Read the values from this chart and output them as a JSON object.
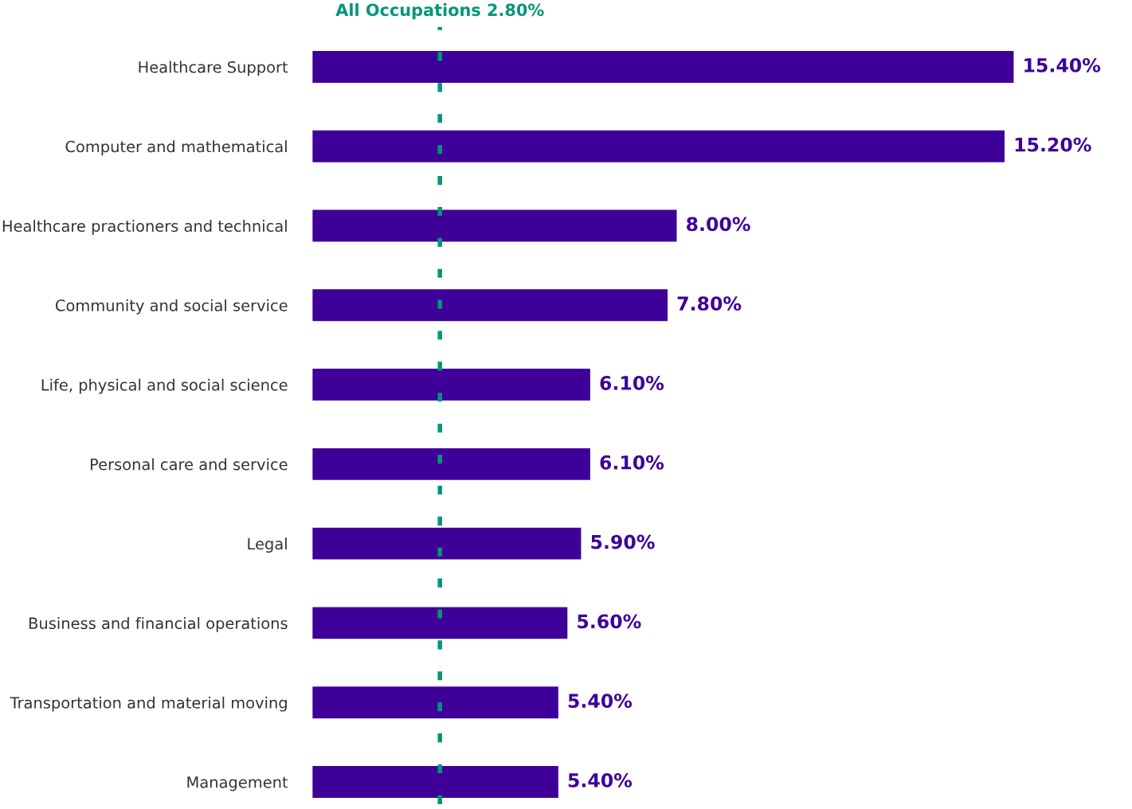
{
  "chart_data": {
    "type": "bar",
    "orientation": "horizontal",
    "categories": [
      "Healthcare Support",
      "Computer and mathematical",
      "Healthcare practioners and technical",
      "Community and social service",
      "Life, physical and social science",
      "Personal care and service",
      "Legal",
      "Business and financial operations",
      "Transportation and material moving",
      "Management"
    ],
    "values": [
      15.4,
      15.2,
      8.0,
      7.8,
      6.1,
      6.1,
      5.9,
      5.6,
      5.4,
      5.4
    ],
    "value_labels": [
      "15.40%",
      "15.20%",
      "8.00%",
      "7.80%",
      "6.10%",
      "6.10%",
      "5.90%",
      "5.60%",
      "5.40%",
      "5.40%"
    ],
    "color": "#3f0099",
    "ref_lines": [
      {
        "axis": "x",
        "value": 2.8,
        "label": "All Occupations 2.80%",
        "color": "#00967a",
        "line_style": "dashed"
      }
    ],
    "grid": false,
    "legend": false
  }
}
